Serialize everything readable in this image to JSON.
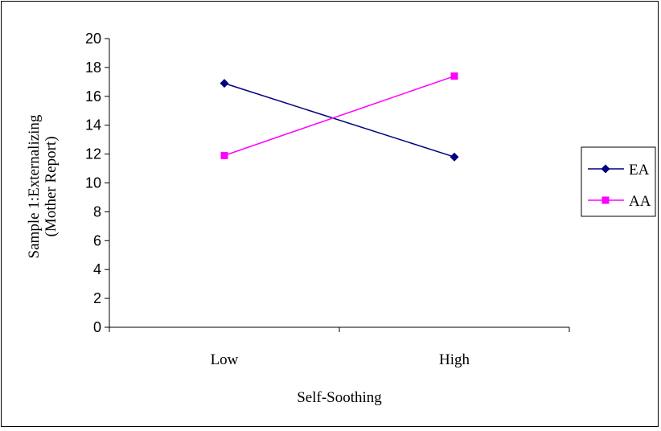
{
  "chart_data": {
    "type": "line",
    "categories": [
      "Low",
      "High"
    ],
    "series": [
      {
        "name": "EA",
        "values": [
          16.9,
          11.8
        ],
        "color": "#000080",
        "marker": "diamond"
      },
      {
        "name": "AA",
        "values": [
          11.9,
          17.4
        ],
        "color": "#FF00FF",
        "marker": "square"
      }
    ],
    "title": "",
    "xlabel": "Self-Soothing",
    "ylabel": [
      "Sample 1:Externalizing",
      "(Mother Report)"
    ],
    "ylim": [
      0,
      20
    ],
    "yticks": [
      0,
      2,
      4,
      6,
      8,
      10,
      12,
      14,
      16,
      18,
      20
    ],
    "grid": false,
    "legend_position": "right"
  }
}
